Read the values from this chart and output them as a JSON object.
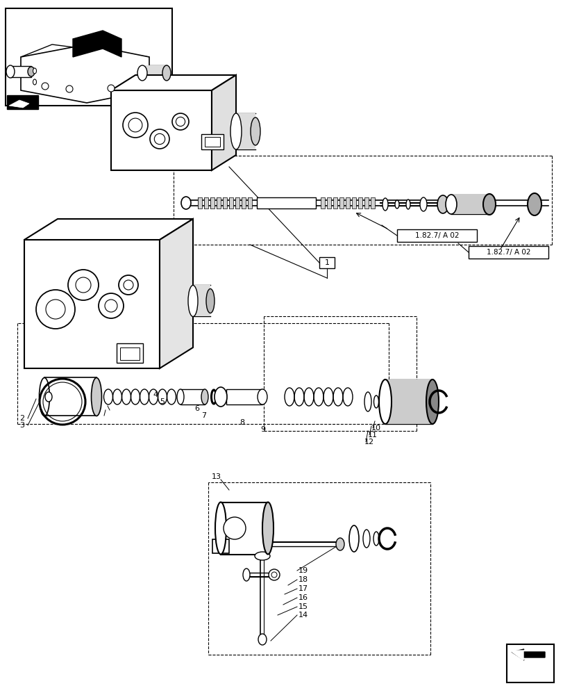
{
  "bg_color": "#ffffff",
  "line_color": "#000000",
  "fig_width": 8.12,
  "fig_height": 10.0,
  "dpi": 100,
  "ref_label": "1.82.7/ A 02",
  "part_label": "1",
  "part_numbers_mid": [
    "4",
    "5",
    "6",
    "7",
    "8",
    "9",
    "10",
    "11",
    "12"
  ],
  "part_numbers_bot": [
    "2",
    "3",
    "13",
    "14",
    "15",
    "16",
    "17",
    "18",
    "19"
  ]
}
